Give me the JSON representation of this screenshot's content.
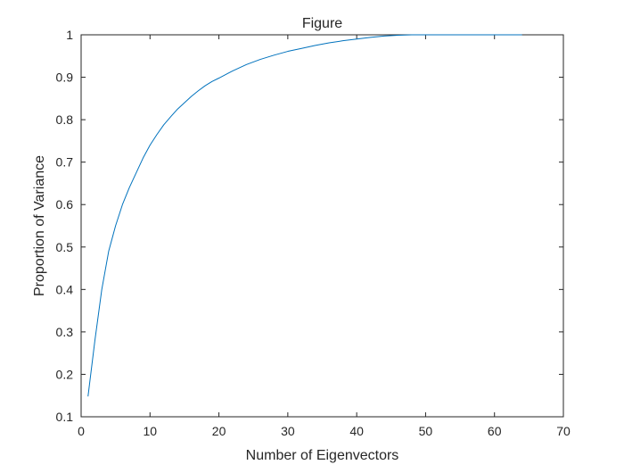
{
  "chart_data": {
    "type": "line",
    "title": "Figure",
    "xlabel": "Number of Eigenvectors",
    "ylabel": "Proportion of Variance",
    "xlim": [
      0,
      70
    ],
    "ylim": [
      0.1,
      1
    ],
    "xticks": [
      0,
      10,
      20,
      30,
      40,
      50,
      60,
      70
    ],
    "yticks": [
      0.1,
      0.2,
      0.3,
      0.4,
      0.5,
      0.6,
      0.7,
      0.8,
      0.9,
      1
    ],
    "ytick_labels": [
      "0.1",
      "0.2",
      "0.3",
      "0.4",
      "0.5",
      "0.6",
      "0.7",
      "0.8",
      "0.9",
      "1"
    ],
    "grid": false,
    "line_color": "#0072BD",
    "series": [
      {
        "x": [
          1,
          2,
          3,
          4,
          5,
          6,
          7,
          8,
          9,
          10,
          11,
          12,
          13,
          14,
          15,
          16,
          17,
          18,
          19,
          20,
          22,
          24,
          26,
          28,
          30,
          32,
          34,
          36,
          38,
          40,
          42,
          44,
          46,
          48,
          50,
          52,
          54,
          56,
          58,
          60,
          62,
          64
        ],
        "y": [
          0.148,
          0.28,
          0.4,
          0.49,
          0.55,
          0.6,
          0.64,
          0.675,
          0.71,
          0.74,
          0.765,
          0.788,
          0.807,
          0.825,
          0.84,
          0.855,
          0.868,
          0.88,
          0.89,
          0.898,
          0.915,
          0.93,
          0.942,
          0.952,
          0.961,
          0.968,
          0.975,
          0.981,
          0.986,
          0.99,
          0.994,
          0.997,
          0.999,
          1.0,
          1.0,
          1.0,
          1.0,
          1.0,
          1.0,
          1.0,
          1.0,
          1.0
        ]
      }
    ]
  }
}
